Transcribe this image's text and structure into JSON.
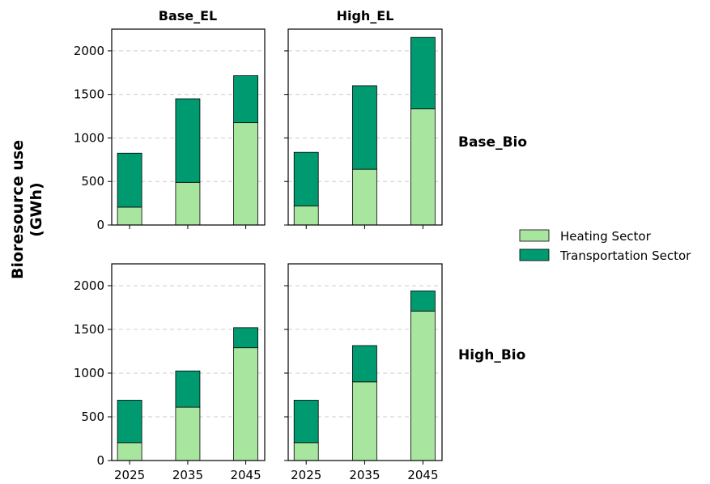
{
  "chart_data": {
    "type": "bar",
    "stacked": true,
    "ylabel": "Bioresource use\n(GWh)",
    "column_titles": [
      "Base_EL",
      "High_EL"
    ],
    "row_titles": [
      "Base_Bio",
      "High_Bio"
    ],
    "categories": [
      "2025",
      "2035",
      "2045"
    ],
    "ylim": [
      0,
      2250
    ],
    "yticks": [
      0,
      500,
      1000,
      1500,
      2000
    ],
    "grid": "horizontal dashed",
    "legend": {
      "placement": "right",
      "entries": [
        "Heating Sector",
        "Transportation Sector"
      ]
    },
    "colors": {
      "Heating Sector": "#a8e6a0",
      "Transportation Sector": "#009a70",
      "grid": "#cccccc"
    },
    "panels": [
      {
        "row": "Base_Bio",
        "col": "Base_EL",
        "series": [
          {
            "name": "Heating Sector",
            "values": [
              205,
              490,
              1175
            ]
          },
          {
            "name": "Transportation Sector",
            "values": [
              620,
              960,
              540
            ]
          }
        ]
      },
      {
        "row": "Base_Bio",
        "col": "High_EL",
        "series": [
          {
            "name": "Heating Sector",
            "values": [
              220,
              640,
              1335
            ]
          },
          {
            "name": "Transportation Sector",
            "values": [
              615,
              960,
              820
            ]
          }
        ]
      },
      {
        "row": "High_Bio",
        "col": "Base_EL",
        "series": [
          {
            "name": "Heating Sector",
            "values": [
              205,
              610,
              1290
            ]
          },
          {
            "name": "Transportation Sector",
            "values": [
              485,
              415,
              230
            ]
          }
        ]
      },
      {
        "row": "High_Bio",
        "col": "High_EL",
        "series": [
          {
            "name": "Heating Sector",
            "values": [
              205,
              900,
              1710
            ]
          },
          {
            "name": "Transportation Sector",
            "values": [
              485,
              415,
              230
            ]
          }
        ]
      }
    ]
  }
}
